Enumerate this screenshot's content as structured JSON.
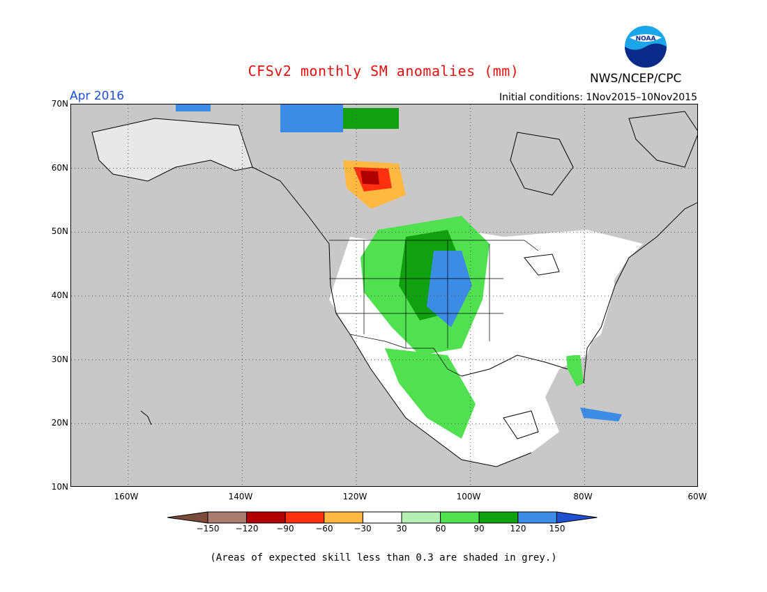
{
  "title": "CFSv2 monthly SM anomalies (mm)",
  "agency": "NWS/NCEP/CPC",
  "logo_text": "NOAA",
  "target_month": "Apr 2016",
  "initial_conditions": "Initial conditions: 1Nov2015–10Nov2015",
  "footnote": "(Areas of expected skill less than 0.3 are shaded in grey.)",
  "map": {
    "lon_range": [
      -170,
      -60
    ],
    "lat_range": [
      10,
      70
    ],
    "lat_labels": [
      "70N",
      "60N",
      "50N",
      "40N",
      "30N",
      "20N",
      "10N"
    ],
    "lon_labels": [
      "160W",
      "140W",
      "120W",
      "100W",
      "80W",
      "60W"
    ],
    "grid_style": "dotted",
    "colors": {
      "grey_mask": "#c8c8c8",
      "land_neutral": "#ffffff",
      "coast": "#000000"
    }
  },
  "colorbar": {
    "ticks": [
      "−150",
      "−120",
      "−90",
      "−60",
      "−30",
      "30",
      "60",
      "90",
      "120",
      "150"
    ],
    "colors": [
      "#7a4a3a",
      "#a87a70",
      "#b00000",
      "#ff3010",
      "#ffb840",
      "#ffffff",
      "#b4f0b4",
      "#50e050",
      "#10a010",
      "#3c8ce6",
      "#1e50d0"
    ]
  }
}
